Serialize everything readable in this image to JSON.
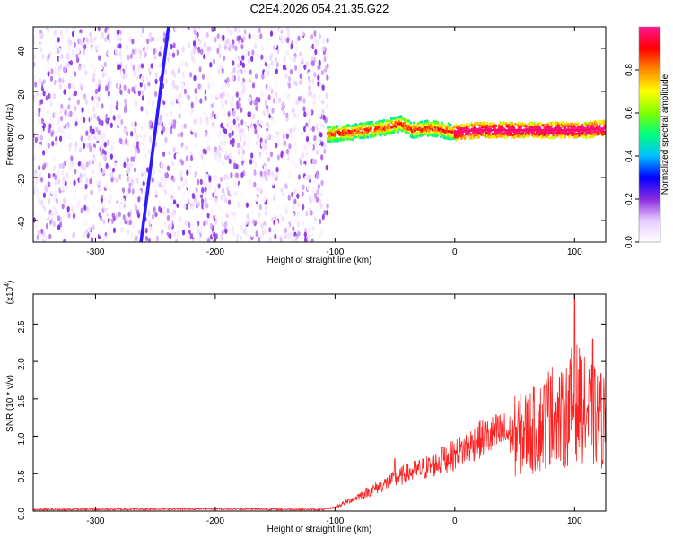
{
  "chart_data": [
    {
      "type": "heatmap",
      "title": "C2E4.2026.054.21.35.G22",
      "xlabel": "Height of straight line (km)",
      "ylabel": "Frequency (Hz)",
      "xlim": [
        -352,
        126
      ],
      "ylim": [
        -50,
        50
      ],
      "xticks": [
        "-300",
        "-200",
        "-100",
        "0",
        "100"
      ],
      "yticks": [
        "-40",
        "-20",
        "0",
        "20",
        "40"
      ],
      "colorbar": {
        "label": "Normalized spectral amplitude",
        "range": [
          0,
          1
        ],
        "ticks": [
          "0.0",
          "0.2",
          "0.4",
          "0.6",
          "0.8"
        ],
        "colors": [
          "#ffffff",
          "#e8ccff",
          "#8a2be2",
          "#0000ff",
          "#00bfff",
          "#00ff7f",
          "#7fff00",
          "#ffff00",
          "#ff8c00",
          "#ff0000",
          "#ff1493"
        ]
      },
      "description_regions": [
        {
          "x_range": [
            -352,
            -106
          ],
          "content": "broadband noise, amplitude 0.0-0.2"
        },
        {
          "x_range": [
            -106,
            126
          ],
          "content": "narrow line near 0 Hz, amplitude 0.4-1.0"
        }
      ],
      "streak": {
        "x": [
          -262,
          -239
        ],
        "y": [
          -50,
          50
        ]
      },
      "line_center": [
        [
          -106,
          0
        ],
        [
          -80,
          1.5
        ],
        [
          -60,
          3
        ],
        [
          -45,
          5
        ],
        [
          -35,
          2
        ],
        [
          -20,
          3
        ],
        [
          -10,
          2
        ],
        [
          0,
          1
        ],
        [
          20,
          2
        ],
        [
          60,
          2
        ],
        [
          90,
          2
        ],
        [
          110,
          2
        ],
        [
          126,
          3
        ]
      ]
    },
    {
      "type": "line",
      "xlabel": "Height of straight line (km)",
      "ylabel": "SNR (10 * v/v)",
      "y_multiplier": "(x10",
      "y_multiplier_exp": "4",
      "xlim": [
        -352,
        126
      ],
      "ylim": [
        0,
        2.9
      ],
      "xticks": [
        "-300",
        "-200",
        "-100",
        "0",
        "100"
      ],
      "yticks": [
        "0.0",
        "0.5",
        "1.0",
        "1.5",
        "2.0",
        "2.5"
      ],
      "color": "#ff2020",
      "envelope": [
        [
          -352,
          0.02
        ],
        [
          -200,
          0.03
        ],
        [
          -110,
          0.02
        ],
        [
          -100,
          0.05
        ],
        [
          -80,
          0.2
        ],
        [
          -60,
          0.35
        ],
        [
          -40,
          0.5
        ],
        [
          -20,
          0.6
        ],
        [
          0,
          0.75
        ],
        [
          20,
          0.95
        ],
        [
          40,
          1.05
        ],
        [
          50,
          1.0
        ],
        [
          70,
          1.1
        ],
        [
          80,
          1.3
        ],
        [
          90,
          1.2
        ],
        [
          100,
          1.5
        ],
        [
          110,
          1.3
        ],
        [
          126,
          1.2
        ]
      ],
      "peaks": [
        [
          -50,
          0.7
        ],
        [
          -10,
          0.85
        ],
        [
          80,
          1.8
        ],
        [
          100,
          2.9
        ],
        [
          115,
          2.3
        ]
      ]
    }
  ]
}
